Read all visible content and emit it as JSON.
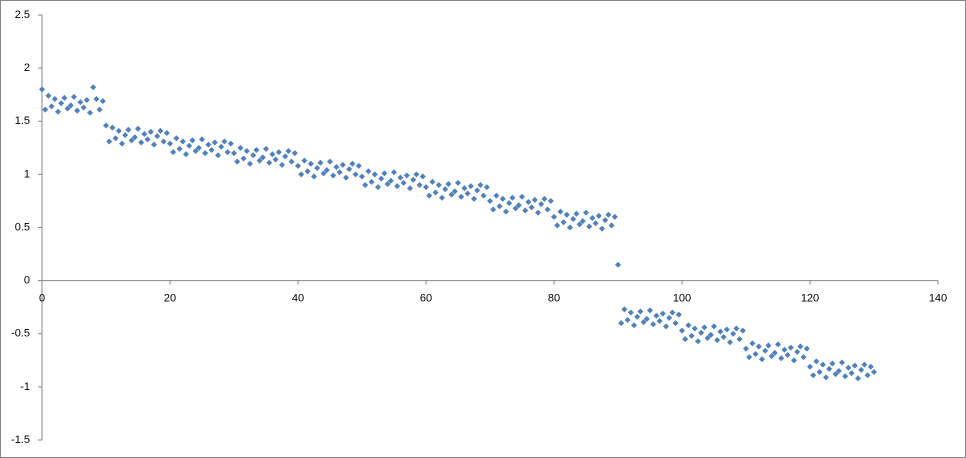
{
  "chart_data": {
    "type": "scatter",
    "color": "#4f81bd",
    "xlim": [
      0,
      140
    ],
    "xticks": [
      0,
      20,
      40,
      60,
      80,
      100,
      120,
      140
    ],
    "ylim": [
      -1.5,
      2.5
    ],
    "yticks": [
      2.5,
      2,
      1.5,
      1,
      0.5,
      0,
      -0.5,
      -1,
      -1.5
    ],
    "x": [
      0,
      0.5,
      1,
      1.5,
      2,
      2.5,
      3,
      3.5,
      4,
      4.5,
      5,
      5.5,
      6,
      6.5,
      7,
      7.5,
      8,
      8.5,
      9,
      9.5,
      10,
      10.5,
      11,
      11.5,
      12,
      12.5,
      13,
      13.5,
      14,
      14.5,
      15,
      15.5,
      16,
      16.5,
      17,
      17.5,
      18,
      18.5,
      19,
      19.5,
      20,
      20.5,
      21,
      21.5,
      22,
      22.5,
      23,
      23.5,
      24,
      24.5,
      25,
      25.5,
      26,
      26.5,
      27,
      27.5,
      28,
      28.5,
      29,
      29.5,
      30,
      30.5,
      31,
      31.5,
      32,
      32.5,
      33,
      33.5,
      34,
      34.5,
      35,
      35.5,
      36,
      36.5,
      37,
      37.5,
      38,
      38.5,
      39,
      39.5,
      40,
      40.5,
      41,
      41.5,
      42,
      42.5,
      43,
      43.5,
      44,
      44.5,
      45,
      45.5,
      46,
      46.5,
      47,
      47.5,
      48,
      48.5,
      49,
      49.5,
      50,
      50.5,
      51,
      51.5,
      52,
      52.5,
      53,
      53.5,
      54,
      54.5,
      55,
      55.5,
      56,
      56.5,
      57,
      57.5,
      58,
      58.5,
      59,
      59.5,
      60,
      60.5,
      61,
      61.5,
      62,
      62.5,
      63,
      63.5,
      64,
      64.5,
      65,
      65.5,
      66,
      66.5,
      67,
      67.5,
      68,
      68.5,
      69,
      69.5,
      70,
      70.5,
      71,
      71.5,
      72,
      72.5,
      73,
      73.5,
      74,
      74.5,
      75,
      75.5,
      76,
      76.5,
      77,
      77.5,
      78,
      78.5,
      79,
      79.5,
      80,
      80.5,
      81,
      81.5,
      82,
      82.5,
      83,
      83.5,
      84,
      84.5,
      85,
      85.5,
      86,
      86.5,
      87,
      87.5,
      88,
      88.5,
      89,
      89.5,
      90,
      90.5,
      91,
      91.5,
      92,
      92.5,
      93,
      93.5,
      94,
      94.5,
      95,
      95.5,
      96,
      96.5,
      97,
      97.5,
      98,
      98.5,
      99,
      99.5,
      100,
      100.5,
      101,
      101.5,
      102,
      102.5,
      103,
      103.5,
      104,
      104.5,
      105,
      105.5,
      106,
      106.5,
      107,
      107.5,
      108,
      108.5,
      109,
      109.5,
      110,
      110.5,
      111,
      111.5,
      112,
      112.5,
      113,
      113.5,
      114,
      114.5,
      115,
      115.5,
      116,
      116.5,
      117,
      117.5,
      118,
      118.5,
      119,
      119.5,
      120,
      120.5,
      121,
      121.5,
      122,
      122.5,
      123,
      123.5,
      124,
      124.5,
      125,
      125.5,
      126,
      126.5,
      127,
      127.5,
      128,
      128.5,
      129,
      129.5,
      130
    ],
    "values": [
      1.8,
      1.61,
      1.74,
      1.64,
      1.71,
      1.59,
      1.67,
      1.72,
      1.62,
      1.65,
      1.73,
      1.6,
      1.68,
      1.63,
      1.7,
      1.58,
      1.82,
      1.71,
      1.61,
      1.69,
      1.46,
      1.31,
      1.44,
      1.34,
      1.41,
      1.29,
      1.37,
      1.42,
      1.32,
      1.35,
      1.43,
      1.3,
      1.38,
      1.33,
      1.4,
      1.28,
      1.36,
      1.41,
      1.31,
      1.39,
      1.29,
      1.21,
      1.34,
      1.24,
      1.31,
      1.19,
      1.27,
      1.32,
      1.22,
      1.25,
      1.33,
      1.2,
      1.28,
      1.23,
      1.3,
      1.18,
      1.26,
      1.31,
      1.21,
      1.29,
      1.2,
      1.12,
      1.25,
      1.15,
      1.22,
      1.1,
      1.18,
      1.23,
      1.13,
      1.16,
      1.24,
      1.11,
      1.19,
      1.14,
      1.21,
      1.09,
      1.17,
      1.22,
      1.12,
      1.2,
      1.08,
      1,
      1.13,
      1.03,
      1.1,
      0.98,
      1.06,
      1.11,
      1.01,
      1.04,
      1.12,
      0.99,
      1.07,
      1.02,
      1.09,
      0.97,
      1.05,
      1.1,
      1,
      1.08,
      0.98,
      0.9,
      1.03,
      0.93,
      1,
      0.88,
      0.96,
      1.01,
      0.91,
      0.94,
      1.02,
      0.89,
      0.97,
      0.92,
      0.99,
      0.87,
      0.95,
      1,
      0.9,
      0.98,
      0.88,
      0.8,
      0.93,
      0.83,
      0.9,
      0.78,
      0.86,
      0.91,
      0.81,
      0.84,
      0.92,
      0.79,
      0.87,
      0.82,
      0.89,
      0.77,
      0.85,
      0.9,
      0.8,
      0.88,
      0.75,
      0.67,
      0.8,
      0.7,
      0.77,
      0.65,
      0.73,
      0.78,
      0.68,
      0.71,
      0.79,
      0.66,
      0.74,
      0.69,
      0.76,
      0.64,
      0.72,
      0.77,
      0.67,
      0.75,
      0.6,
      0.52,
      0.65,
      0.55,
      0.62,
      0.5,
      0.58,
      0.63,
      0.53,
      0.56,
      0.64,
      0.51,
      0.59,
      0.54,
      0.61,
      0.49,
      0.57,
      0.62,
      0.52,
      0.6,
      0.15,
      -0.4,
      -0.27,
      -0.37,
      -0.3,
      -0.42,
      -0.34,
      -0.29,
      -0.39,
      -0.36,
      -0.28,
      -0.41,
      -0.33,
      -0.38,
      -0.31,
      -0.43,
      -0.35,
      -0.3,
      -0.4,
      -0.32,
      -0.47,
      -0.55,
      -0.42,
      -0.52,
      -0.45,
      -0.57,
      -0.49,
      -0.44,
      -0.54,
      -0.51,
      -0.43,
      -0.56,
      -0.48,
      -0.53,
      -0.46,
      -0.58,
      -0.5,
      -0.45,
      -0.55,
      -0.47,
      -0.64,
      -0.72,
      -0.59,
      -0.69,
      -0.62,
      -0.74,
      -0.66,
      -0.61,
      -0.71,
      -0.68,
      -0.6,
      -0.73,
      -0.65,
      -0.7,
      -0.63,
      -0.75,
      -0.67,
      -0.62,
      -0.72,
      -0.64,
      -0.81,
      -0.89,
      -0.76,
      -0.86,
      -0.79,
      -0.91,
      -0.83,
      -0.78,
      -0.88,
      -0.85,
      -0.77,
      -0.9,
      -0.82,
      -0.87,
      -0.8,
      -0.92,
      -0.84,
      -0.79,
      -0.89,
      -0.81,
      -0.86
    ]
  }
}
